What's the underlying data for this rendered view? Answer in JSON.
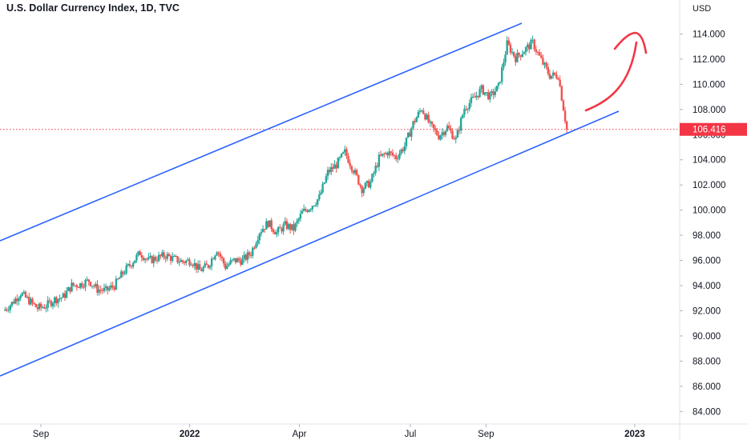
{
  "header": {
    "title": "U.S. Dollar Currency Index, 1D, TVC"
  },
  "colors": {
    "up": "#26a69a",
    "down": "#ef5350",
    "channel": "#2962ff",
    "arrow": "#f23645",
    "last": "#f23645"
  },
  "chart_data": {
    "type": "candlestick",
    "title": "U.S. Dollar Currency Index, 1D, TVC",
    "currency_label": "USD",
    "ylim": [
      83,
      116.7
    ],
    "y_ticks": [
      "84.000",
      "86.000",
      "88.000",
      "90.000",
      "92.000",
      "94.000",
      "96.000",
      "98.000",
      "100.000",
      "102.000",
      "104.000",
      "106.000",
      "108.000",
      "110.000",
      "112.000",
      "114.000"
    ],
    "x_ticks": [
      {
        "label": "Sep",
        "date": "2021-09-01"
      },
      {
        "label": "2022",
        "date": "2022-01-01"
      },
      {
        "label": "Apr",
        "date": "2022-04-01"
      },
      {
        "label": "Jul",
        "date": "2022-07-01"
      },
      {
        "label": "Sep",
        "date": "2022-09-01"
      },
      {
        "label": "2023",
        "date": "2023-01-01"
      }
    ],
    "last_price": "106.416",
    "closes": [
      {
        "date": "2021-08-02",
        "close": 92.0
      },
      {
        "date": "2021-08-09",
        "close": 92.6
      },
      {
        "date": "2021-08-16",
        "close": 93.4
      },
      {
        "date": "2021-08-23",
        "close": 92.8
      },
      {
        "date": "2021-08-30",
        "close": 92.2
      },
      {
        "date": "2021-09-06",
        "close": 92.4
      },
      {
        "date": "2021-09-13",
        "close": 92.9
      },
      {
        "date": "2021-09-20",
        "close": 93.1
      },
      {
        "date": "2021-09-27",
        "close": 94.0
      },
      {
        "date": "2021-10-04",
        "close": 94.1
      },
      {
        "date": "2021-10-11",
        "close": 94.4
      },
      {
        "date": "2021-10-18",
        "close": 93.7
      },
      {
        "date": "2021-10-25",
        "close": 93.6
      },
      {
        "date": "2021-11-01",
        "close": 94.0
      },
      {
        "date": "2021-11-08",
        "close": 95.0
      },
      {
        "date": "2021-11-15",
        "close": 95.8
      },
      {
        "date": "2021-11-22",
        "close": 96.6
      },
      {
        "date": "2021-11-29",
        "close": 96.0
      },
      {
        "date": "2021-12-06",
        "close": 96.2
      },
      {
        "date": "2021-12-13",
        "close": 96.4
      },
      {
        "date": "2021-12-20",
        "close": 96.1
      },
      {
        "date": "2021-12-27",
        "close": 95.9
      },
      {
        "date": "2022-01-03",
        "close": 96.0
      },
      {
        "date": "2022-01-10",
        "close": 95.2
      },
      {
        "date": "2022-01-17",
        "close": 95.6
      },
      {
        "date": "2022-01-24",
        "close": 96.9
      },
      {
        "date": "2022-01-31",
        "close": 95.5
      },
      {
        "date": "2022-02-07",
        "close": 96.0
      },
      {
        "date": "2022-02-14",
        "close": 96.0
      },
      {
        "date": "2022-02-21",
        "close": 96.6
      },
      {
        "date": "2022-02-28",
        "close": 98.3
      },
      {
        "date": "2022-03-07",
        "close": 99.0
      },
      {
        "date": "2022-03-14",
        "close": 98.2
      },
      {
        "date": "2022-03-21",
        "close": 98.8
      },
      {
        "date": "2022-03-28",
        "close": 98.5
      },
      {
        "date": "2022-04-04",
        "close": 99.8
      },
      {
        "date": "2022-04-11",
        "close": 100.3
      },
      {
        "date": "2022-04-18",
        "close": 101.0
      },
      {
        "date": "2022-04-25",
        "close": 103.0
      },
      {
        "date": "2022-05-02",
        "close": 103.6
      },
      {
        "date": "2022-05-09",
        "close": 104.6
      },
      {
        "date": "2022-05-16",
        "close": 103.2
      },
      {
        "date": "2022-05-23",
        "close": 101.7
      },
      {
        "date": "2022-05-30",
        "close": 102.2
      },
      {
        "date": "2022-06-06",
        "close": 104.1
      },
      {
        "date": "2022-06-13",
        "close": 104.6
      },
      {
        "date": "2022-06-20",
        "close": 104.2
      },
      {
        "date": "2022-06-27",
        "close": 105.1
      },
      {
        "date": "2022-07-04",
        "close": 106.9
      },
      {
        "date": "2022-07-11",
        "close": 108.1
      },
      {
        "date": "2022-07-18",
        "close": 106.7
      },
      {
        "date": "2022-07-25",
        "close": 105.9
      },
      {
        "date": "2022-08-01",
        "close": 106.6
      },
      {
        "date": "2022-08-08",
        "close": 105.6
      },
      {
        "date": "2022-08-15",
        "close": 108.1
      },
      {
        "date": "2022-08-22",
        "close": 108.8
      },
      {
        "date": "2022-08-29",
        "close": 109.6
      },
      {
        "date": "2022-09-05",
        "close": 109.0
      },
      {
        "date": "2022-09-12",
        "close": 109.8
      },
      {
        "date": "2022-09-19",
        "close": 113.2
      },
      {
        "date": "2022-09-26",
        "close": 112.1
      },
      {
        "date": "2022-10-03",
        "close": 112.7
      },
      {
        "date": "2022-10-10",
        "close": 113.3
      },
      {
        "date": "2022-10-17",
        "close": 111.9
      },
      {
        "date": "2022-10-24",
        "close": 110.7
      },
      {
        "date": "2022-10-31",
        "close": 110.7
      },
      {
        "date": "2022-11-07",
        "close": 106.4
      }
    ]
  }
}
